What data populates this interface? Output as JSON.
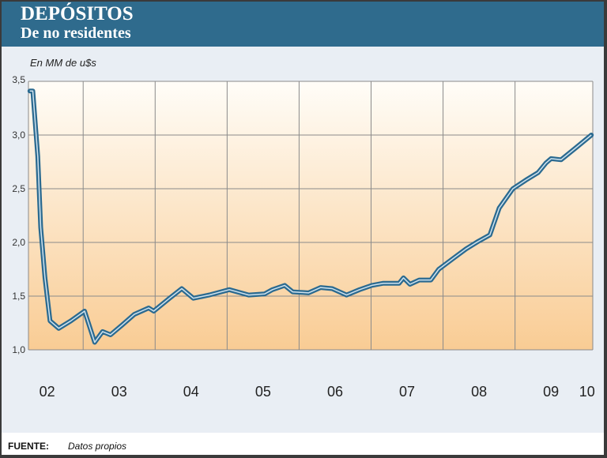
{
  "header": {
    "title": "DEPÓSITOS",
    "subtitle": "De no residentes"
  },
  "footer": {
    "source_label": "FUENTE:",
    "source_text": "Datos propios"
  },
  "chart_data": {
    "type": "line",
    "title": "DEPÓSITOS",
    "subtitle": "De no residentes",
    "ylabel": "En MM de u$s",
    "xlabel": "",
    "ylim": [
      1.0,
      3.5
    ],
    "xlim": [
      2002.24,
      2010.08
    ],
    "yticks": [
      {
        "v": 1.0,
        "label": "1,0"
      },
      {
        "v": 1.5,
        "label": "1,5"
      },
      {
        "v": 2.0,
        "label": "2,0"
      },
      {
        "v": 2.5,
        "label": "2,5"
      },
      {
        "v": 3.0,
        "label": "3,0"
      },
      {
        "v": 3.5,
        "label": "3,5"
      }
    ],
    "xticks": [
      {
        "v": 2002.5,
        "label": "02"
      },
      {
        "v": 2003.5,
        "label": "03"
      },
      {
        "v": 2004.5,
        "label": "04"
      },
      {
        "v": 2005.5,
        "label": "05"
      },
      {
        "v": 2006.5,
        "label": "06"
      },
      {
        "v": 2007.5,
        "label": "07"
      },
      {
        "v": 2008.5,
        "label": "08"
      },
      {
        "v": 2009.5,
        "label": "09"
      },
      {
        "v": 2010.0,
        "label": "10"
      }
    ],
    "grid": true,
    "series": [
      {
        "name": "Depósitos de no residentes",
        "color": "#2b6a90",
        "x": [
          2002.26,
          2002.3,
          2002.37,
          2002.41,
          2002.47,
          2002.54,
          2002.66,
          2002.83,
          2003.02,
          2003.16,
          2003.27,
          2003.38,
          2003.54,
          2003.71,
          2003.91,
          2003.98,
          2004.2,
          2004.37,
          2004.53,
          2004.75,
          2005.03,
          2005.3,
          2005.52,
          2005.63,
          2005.8,
          2005.91,
          2006.13,
          2006.3,
          2006.46,
          2006.66,
          2006.84,
          2007.01,
          2007.17,
          2007.39,
          2007.45,
          2007.54,
          2007.67,
          2007.83,
          2007.94,
          2008.16,
          2008.32,
          2008.49,
          2008.65,
          2008.78,
          2008.97,
          2009.15,
          2009.32,
          2009.43,
          2009.5,
          2009.64,
          2009.86,
          2010.06
        ],
        "y": [
          3.41,
          3.41,
          2.8,
          2.14,
          1.67,
          1.27,
          1.2,
          1.27,
          1.36,
          1.07,
          1.17,
          1.14,
          1.23,
          1.33,
          1.39,
          1.36,
          1.48,
          1.57,
          1.48,
          1.51,
          1.56,
          1.51,
          1.52,
          1.56,
          1.6,
          1.54,
          1.53,
          1.58,
          1.57,
          1.51,
          1.56,
          1.6,
          1.62,
          1.62,
          1.67,
          1.61,
          1.65,
          1.65,
          1.75,
          1.86,
          1.94,
          2.01,
          2.07,
          2.32,
          2.5,
          2.58,
          2.65,
          2.74,
          2.78,
          2.77,
          2.89,
          3.0
        ]
      }
    ]
  }
}
